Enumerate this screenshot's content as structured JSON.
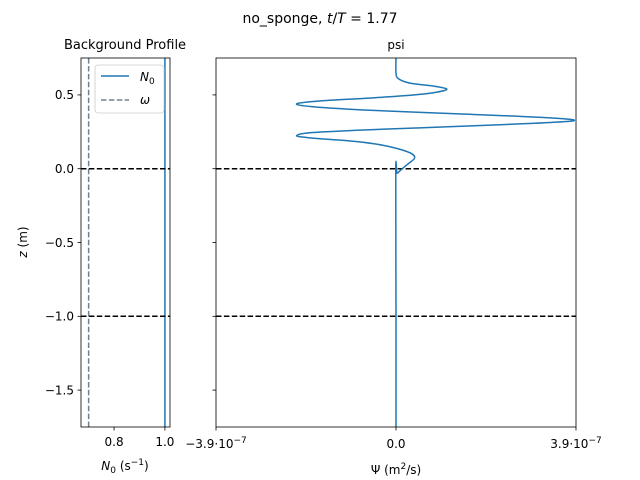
{
  "figure": {
    "suptitle_prefix": "no_sponge, ",
    "suptitle_t": "t",
    "suptitle_slash": "/",
    "suptitle_T": "T",
    "suptitle_value": " = 1.77"
  },
  "chart_data": [
    {
      "type": "line",
      "title": "Background Profile",
      "xlabel_main": "N",
      "xlabel_sub": "0",
      "xlabel_unit_open": " (s",
      "xlabel_unit_exp": "−1",
      "xlabel_unit_close": ")",
      "ylabel_italic": "z",
      "ylabel_unit": " (m)",
      "xlim": [
        0.67,
        1.02
      ],
      "ylim": [
        -1.75,
        0.75
      ],
      "xticks": [
        {
          "value": 0.8,
          "label": "0.8"
        },
        {
          "value": 1.0,
          "label": "1.0"
        }
      ],
      "yticks": [
        {
          "value": 0.5,
          "label": "0.5"
        },
        {
          "value": 0.0,
          "label": "0.0"
        },
        {
          "value": -0.5,
          "label": "−0.5"
        },
        {
          "value": -1.0,
          "label": "−1.0"
        },
        {
          "value": -1.5,
          "label": "−1.5"
        }
      ],
      "legend_position": "top-right",
      "series": [
        {
          "name_main": "N",
          "name_sub": "0",
          "x": [
            1.0,
            1.0
          ],
          "y": [
            -1.75,
            0.75
          ],
          "color": "#1f77b4",
          "style": "solid"
        },
        {
          "name_main": "ω",
          "x": [
            0.7,
            0.7
          ],
          "y": [
            -1.75,
            0.75
          ],
          "color": "#708090",
          "style": "dashed"
        }
      ],
      "hlines": [
        0.0,
        -1.0
      ]
    },
    {
      "type": "line",
      "title": "psi",
      "xlabel_main": "Ψ (m",
      "xlabel_exp": "2",
      "xlabel_tail": "/s)",
      "xlim": [
        -3.9e-07,
        3.9e-07
      ],
      "ylim": [
        -1.75,
        0.75
      ],
      "xticks": [
        {
          "value": -3.9e-07,
          "mant": "−3.9·10",
          "exp": "−7"
        },
        {
          "value": 0.0,
          "mant": "0.0",
          "exp": ""
        },
        {
          "value": 3.9e-07,
          "mant": "3.9·10",
          "exp": "−7"
        }
      ],
      "yticks": [
        0.5,
        0.0,
        -0.5,
        -1.0,
        -1.5
      ],
      "hlines": [
        0.0,
        -1.0
      ],
      "series": [
        {
          "color": "#1f77b4",
          "points": [
            [
              0.0,
              -1.75
            ],
            [
              0.0,
              -1.0
            ],
            [
              -5e-10,
              -0.02
            ],
            [
              2e-09,
              -0.03
            ],
            [
              5e-09,
              -0.025
            ],
            [
              1e-08,
              -0.01
            ],
            [
              2.5e-08,
              0.03
            ],
            [
              4e-08,
              0.07
            ],
            [
              3.5e-08,
              0.1
            ],
            [
              1e-08,
              0.13
            ],
            [
              -3e-08,
              0.16
            ],
            [
              -9e-08,
              0.185
            ],
            [
              -1.9e-07,
              0.21
            ],
            [
              -2.15e-07,
              0.225
            ],
            [
              -1.8e-07,
              0.245
            ],
            [
              -5e-08,
              0.265
            ],
            [
              1.2e-07,
              0.285
            ],
            [
              2.8e-07,
              0.305
            ],
            [
              3.85e-07,
              0.325
            ],
            [
              3.3e-07,
              0.345
            ],
            [
              1.5e-07,
              0.37
            ],
            [
              -5e-08,
              0.395
            ],
            [
              -1.8e-07,
              0.42
            ],
            [
              -2.15e-07,
              0.44
            ],
            [
              -1.6e-07,
              0.46
            ],
            [
              -5e-08,
              0.48
            ],
            [
              4e-08,
              0.5
            ],
            [
              9e-08,
              0.52
            ],
            [
              1.1e-07,
              0.54
            ],
            [
              8e-08,
              0.56
            ],
            [
              3e-08,
              0.58
            ],
            [
              5e-09,
              0.61
            ],
            [
              0.0,
              0.65
            ],
            [
              0.0,
              0.75
            ]
          ]
        }
      ]
    }
  ]
}
